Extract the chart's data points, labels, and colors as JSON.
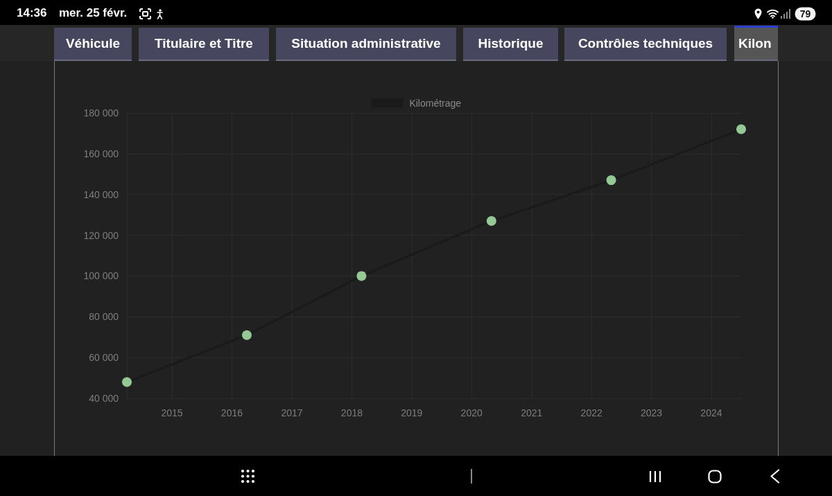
{
  "chart_data": {
    "type": "line",
    "x": [
      "2014-04",
      "2016-04",
      "2018-03",
      "2020-05",
      "2022-05",
      "2024-07"
    ],
    "series": [
      {
        "name": "Kilométrage",
        "color": "#1a1a1a",
        "colors": [
          "#94c894",
          "#94c894",
          "#94c894",
          "#94c894",
          "#94c894",
          "#94c894"
        ],
        "values": [
          48000,
          71000,
          100000,
          127000,
          147000,
          172000
        ]
      }
    ],
    "xlim": [
      "2014-04",
      "2024-07"
    ],
    "xticks": [
      "2015",
      "2016",
      "2017",
      "2018",
      "2019",
      "2020",
      "2021",
      "2022",
      "2023",
      "2024"
    ],
    "ylim": [
      40000,
      180000
    ],
    "yticks": [
      {
        "value": 40000,
        "label": "40 000"
      },
      {
        "value": 60000,
        "label": "60 000"
      },
      {
        "value": 80000,
        "label": "80 000"
      },
      {
        "value": 100000,
        "label": "100 000"
      },
      {
        "value": 120000,
        "label": "120 000"
      },
      {
        "value": 140000,
        "label": "140 000"
      },
      {
        "value": 160000,
        "label": "160 000"
      },
      {
        "value": 180000,
        "label": "180 000"
      }
    ],
    "grid": true,
    "legend": "top",
    "marker": "circle",
    "line_style": "solid",
    "annotations": [
      "14:36",
      "mer. 25 févr.",
      "79",
      "Véhicule",
      "Titulaire et Titre",
      "Situation administrative",
      "Historique",
      "Contrôles techniques",
      "Kilon"
    ]
  }
}
